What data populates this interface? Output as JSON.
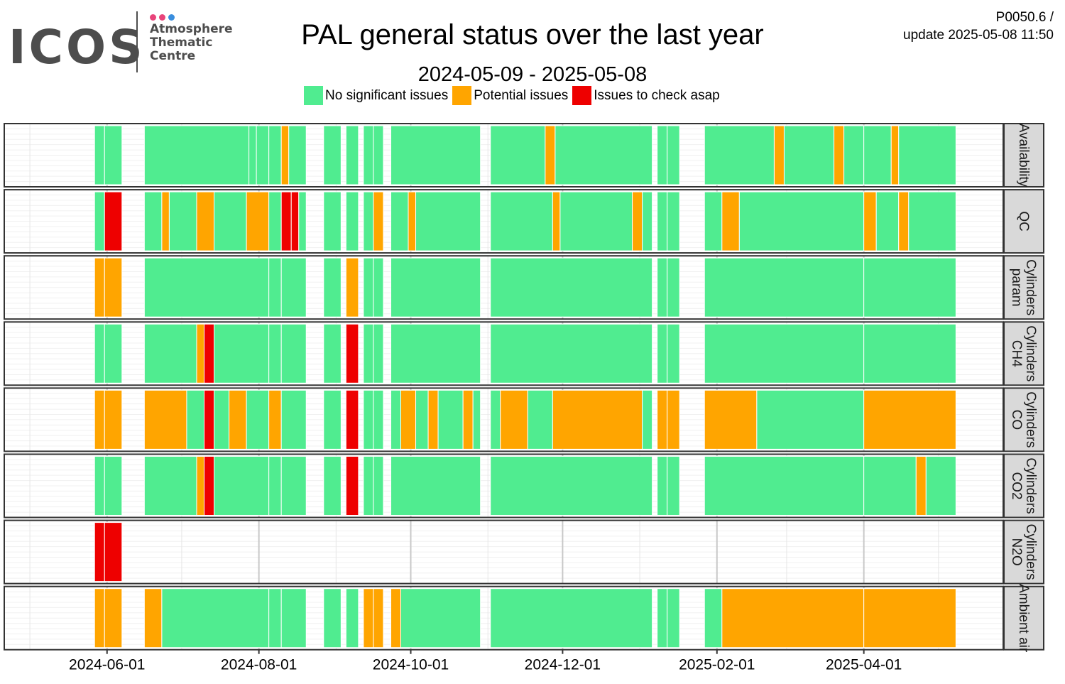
{
  "header": {
    "logo_text": "ICOS",
    "logo_sub": [
      "Atmosphere",
      "Thematic",
      "Centre"
    ],
    "logo_dot_colors": [
      "#e8447a",
      "#e8447a",
      "#3a8ede"
    ],
    "title": "PAL general status over the last year",
    "subtitle": "2024-05-09 - 2025-05-08",
    "code_line1": "P0050.6 /",
    "code_line2": "update  2025-05-08 11:50"
  },
  "legend": [
    {
      "label": "No significant issues",
      "color": "#50ec90"
    },
    {
      "label": "Potential issues",
      "color": "#ffa500"
    },
    {
      "label": "Issues to check asap",
      "color": "#ee0000"
    }
  ],
  "chart_data": {
    "type": "heatmap",
    "title": "PAL general status over the last year",
    "subtitle": "2024-05-09 - 2025-05-08",
    "x_range": [
      "2024-05-09",
      "2025-05-08"
    ],
    "x_ticks": [
      "2024-06-01",
      "2024-08-01",
      "2024-10-01",
      "2024-12-01",
      "2025-02-01",
      "2025-04-01"
    ],
    "status_colors": {
      "G": "#50ec90",
      "O": "#ffa500",
      "R": "#ee0000"
    },
    "rows": [
      {
        "label": [
          "Availability"
        ],
        "segments": [
          [
            "2024-05-27",
            "2024-05-30",
            "G"
          ],
          [
            "2024-05-31",
            "2024-06-06",
            "G"
          ],
          [
            "2024-06-16",
            "2024-07-27",
            "G"
          ],
          [
            "2024-07-28",
            "2024-07-30",
            "G"
          ],
          [
            "2024-07-31",
            "2024-08-04",
            "G"
          ],
          [
            "2024-08-05",
            "2024-08-09",
            "G"
          ],
          [
            "2024-08-10",
            "2024-08-12",
            "O"
          ],
          [
            "2024-08-13",
            "2024-08-19",
            "G"
          ],
          [
            "2024-08-27",
            "2024-09-02",
            "G"
          ],
          [
            "2024-09-05",
            "2024-09-09",
            "G"
          ],
          [
            "2024-09-12",
            "2024-09-15",
            "G"
          ],
          [
            "2024-09-16",
            "2024-09-19",
            "G"
          ],
          [
            "2024-09-23",
            "2024-10-28",
            "G"
          ],
          [
            "2024-11-02",
            "2024-11-23",
            "G"
          ],
          [
            "2024-11-24",
            "2024-11-27",
            "O"
          ],
          [
            "2024-11-28",
            "2025-01-05",
            "G"
          ],
          [
            "2025-01-08",
            "2025-01-11",
            "G"
          ],
          [
            "2025-01-12",
            "2025-01-16",
            "G"
          ],
          [
            "2025-01-27",
            "2025-02-23",
            "G"
          ],
          [
            "2025-02-24",
            "2025-02-27",
            "O"
          ],
          [
            "2025-02-28",
            "2025-03-19",
            "G"
          ],
          [
            "2025-03-20",
            "2025-03-23",
            "O"
          ],
          [
            "2025-03-24",
            "2025-03-31",
            "G"
          ],
          [
            "2025-04-01",
            "2025-04-11",
            "G"
          ],
          [
            "2025-04-12",
            "2025-04-14",
            "O"
          ],
          [
            "2025-04-15",
            "2025-05-07",
            "G"
          ]
        ]
      },
      {
        "label": [
          "QC"
        ],
        "segments": [
          [
            "2024-05-27",
            "2024-05-30",
            "G"
          ],
          [
            "2024-05-31",
            "2024-06-06",
            "R"
          ],
          [
            "2024-06-16",
            "2024-06-22",
            "G"
          ],
          [
            "2024-06-23",
            "2024-06-25",
            "O"
          ],
          [
            "2024-06-26",
            "2024-07-06",
            "G"
          ],
          [
            "2024-07-07",
            "2024-07-13",
            "O"
          ],
          [
            "2024-07-14",
            "2024-07-26",
            "G"
          ],
          [
            "2024-07-27",
            "2024-08-04",
            "O"
          ],
          [
            "2024-08-05",
            "2024-08-09",
            "G"
          ],
          [
            "2024-08-10",
            "2024-08-13",
            "R"
          ],
          [
            "2024-08-14",
            "2024-08-16",
            "R"
          ],
          [
            "2024-08-17",
            "2024-08-19",
            "G"
          ],
          [
            "2024-08-27",
            "2024-09-02",
            "G"
          ],
          [
            "2024-09-05",
            "2024-09-09",
            "G"
          ],
          [
            "2024-09-12",
            "2024-09-15",
            "G"
          ],
          [
            "2024-09-16",
            "2024-09-19",
            "O"
          ],
          [
            "2024-09-23",
            "2024-09-29",
            "G"
          ],
          [
            "2024-09-30",
            "2024-10-02",
            "O"
          ],
          [
            "2024-10-03",
            "2024-10-28",
            "G"
          ],
          [
            "2024-11-02",
            "2024-11-26",
            "G"
          ],
          [
            "2024-11-27",
            "2024-11-29",
            "O"
          ],
          [
            "2024-11-30",
            "2024-12-28",
            "G"
          ],
          [
            "2024-12-29",
            "2025-01-01",
            "O"
          ],
          [
            "2025-01-02",
            "2025-01-05",
            "G"
          ],
          [
            "2025-01-08",
            "2025-01-11",
            "G"
          ],
          [
            "2025-01-12",
            "2025-01-16",
            "G"
          ],
          [
            "2025-01-27",
            "2025-02-02",
            "G"
          ],
          [
            "2025-02-03",
            "2025-02-09",
            "O"
          ],
          [
            "2025-02-10",
            "2025-03-31",
            "G"
          ],
          [
            "2025-04-01",
            "2025-04-05",
            "O"
          ],
          [
            "2025-04-06",
            "2025-04-14",
            "G"
          ],
          [
            "2025-04-15",
            "2025-04-18",
            "O"
          ],
          [
            "2025-04-19",
            "2025-05-07",
            "G"
          ]
        ]
      },
      {
        "label": [
          "Cylinders",
          "param"
        ],
        "segments": [
          [
            "2024-05-27",
            "2024-05-30",
            "O"
          ],
          [
            "2024-05-31",
            "2024-06-06",
            "O"
          ],
          [
            "2024-06-16",
            "2024-08-04",
            "G"
          ],
          [
            "2024-08-05",
            "2024-08-09",
            "G"
          ],
          [
            "2024-08-10",
            "2024-08-19",
            "G"
          ],
          [
            "2024-08-27",
            "2024-09-02",
            "G"
          ],
          [
            "2024-09-05",
            "2024-09-09",
            "O"
          ],
          [
            "2024-09-12",
            "2024-09-15",
            "G"
          ],
          [
            "2024-09-16",
            "2024-09-19",
            "G"
          ],
          [
            "2024-09-23",
            "2024-10-28",
            "G"
          ],
          [
            "2024-11-02",
            "2025-01-05",
            "G"
          ],
          [
            "2025-01-08",
            "2025-01-11",
            "G"
          ],
          [
            "2025-01-12",
            "2025-01-16",
            "G"
          ],
          [
            "2025-01-27",
            "2025-03-31",
            "G"
          ],
          [
            "2025-04-01",
            "2025-05-07",
            "G"
          ]
        ]
      },
      {
        "label": [
          "Cylinders",
          "CH4"
        ],
        "segments": [
          [
            "2024-05-27",
            "2024-05-30",
            "G"
          ],
          [
            "2024-05-31",
            "2024-06-06",
            "G"
          ],
          [
            "2024-06-16",
            "2024-07-06",
            "G"
          ],
          [
            "2024-07-07",
            "2024-07-09",
            "O"
          ],
          [
            "2024-07-10",
            "2024-07-13",
            "R"
          ],
          [
            "2024-07-14",
            "2024-08-04",
            "G"
          ],
          [
            "2024-08-05",
            "2024-08-09",
            "G"
          ],
          [
            "2024-08-10",
            "2024-08-19",
            "G"
          ],
          [
            "2024-08-27",
            "2024-09-02",
            "G"
          ],
          [
            "2024-09-05",
            "2024-09-09",
            "R"
          ],
          [
            "2024-09-12",
            "2024-09-15",
            "G"
          ],
          [
            "2024-09-16",
            "2024-09-19",
            "G"
          ],
          [
            "2024-09-23",
            "2024-10-28",
            "G"
          ],
          [
            "2024-11-02",
            "2025-01-05",
            "G"
          ],
          [
            "2025-01-08",
            "2025-01-11",
            "G"
          ],
          [
            "2025-01-12",
            "2025-01-16",
            "G"
          ],
          [
            "2025-01-27",
            "2025-03-31",
            "G"
          ],
          [
            "2025-04-01",
            "2025-05-07",
            "G"
          ]
        ]
      },
      {
        "label": [
          "Cylinders",
          "CO"
        ],
        "segments": [
          [
            "2024-05-27",
            "2024-05-30",
            "O"
          ],
          [
            "2024-05-31",
            "2024-06-06",
            "O"
          ],
          [
            "2024-06-16",
            "2024-07-02",
            "O"
          ],
          [
            "2024-07-03",
            "2024-07-09",
            "G"
          ],
          [
            "2024-07-10",
            "2024-07-13",
            "R"
          ],
          [
            "2024-07-14",
            "2024-07-19",
            "G"
          ],
          [
            "2024-07-20",
            "2024-07-26",
            "O"
          ],
          [
            "2024-07-27",
            "2024-08-04",
            "G"
          ],
          [
            "2024-08-05",
            "2024-08-09",
            "O"
          ],
          [
            "2024-08-10",
            "2024-08-19",
            "G"
          ],
          [
            "2024-08-27",
            "2024-09-02",
            "G"
          ],
          [
            "2024-09-05",
            "2024-09-09",
            "R"
          ],
          [
            "2024-09-12",
            "2024-09-15",
            "G"
          ],
          [
            "2024-09-16",
            "2024-09-19",
            "G"
          ],
          [
            "2024-09-23",
            "2024-09-26",
            "G"
          ],
          [
            "2024-09-27",
            "2024-10-02",
            "O"
          ],
          [
            "2024-10-03",
            "2024-10-07",
            "G"
          ],
          [
            "2024-10-08",
            "2024-10-11",
            "O"
          ],
          [
            "2024-10-12",
            "2024-10-21",
            "G"
          ],
          [
            "2024-10-22",
            "2024-10-25",
            "O"
          ],
          [
            "2024-10-26",
            "2024-10-28",
            "G"
          ],
          [
            "2024-11-02",
            "2024-11-05",
            "G"
          ],
          [
            "2024-11-06",
            "2024-11-16",
            "O"
          ],
          [
            "2024-11-17",
            "2024-11-26",
            "G"
          ],
          [
            "2024-11-27",
            "2025-01-01",
            "O"
          ],
          [
            "2025-01-02",
            "2025-01-05",
            "G"
          ],
          [
            "2025-01-08",
            "2025-01-11",
            "O"
          ],
          [
            "2025-01-12",
            "2025-01-16",
            "O"
          ],
          [
            "2025-01-27",
            "2025-02-16",
            "O"
          ],
          [
            "2025-02-17",
            "2025-03-31",
            "G"
          ],
          [
            "2025-04-01",
            "2025-05-07",
            "O"
          ]
        ]
      },
      {
        "label": [
          "Cylinders",
          "CO2"
        ],
        "segments": [
          [
            "2024-05-27",
            "2024-05-30",
            "G"
          ],
          [
            "2024-05-31",
            "2024-06-06",
            "G"
          ],
          [
            "2024-06-16",
            "2024-07-06",
            "G"
          ],
          [
            "2024-07-07",
            "2024-07-09",
            "O"
          ],
          [
            "2024-07-10",
            "2024-07-13",
            "R"
          ],
          [
            "2024-07-14",
            "2024-08-04",
            "G"
          ],
          [
            "2024-08-05",
            "2024-08-09",
            "G"
          ],
          [
            "2024-08-10",
            "2024-08-19",
            "G"
          ],
          [
            "2024-08-27",
            "2024-09-02",
            "G"
          ],
          [
            "2024-09-05",
            "2024-09-09",
            "R"
          ],
          [
            "2024-09-12",
            "2024-09-15",
            "G"
          ],
          [
            "2024-09-16",
            "2024-09-19",
            "G"
          ],
          [
            "2024-09-23",
            "2024-10-28",
            "G"
          ],
          [
            "2024-11-02",
            "2025-01-05",
            "G"
          ],
          [
            "2025-01-08",
            "2025-01-11",
            "G"
          ],
          [
            "2025-01-12",
            "2025-01-16",
            "G"
          ],
          [
            "2025-01-27",
            "2025-03-31",
            "G"
          ],
          [
            "2025-04-01",
            "2025-04-21",
            "G"
          ],
          [
            "2025-04-22",
            "2025-04-25",
            "O"
          ],
          [
            "2025-04-26",
            "2025-05-07",
            "G"
          ]
        ]
      },
      {
        "label": [
          "Cylinders",
          "N2O"
        ],
        "segments": [
          [
            "2024-05-27",
            "2024-05-30",
            "R"
          ],
          [
            "2024-05-31",
            "2024-06-06",
            "R"
          ]
        ]
      },
      {
        "label": [
          "Ambient air"
        ],
        "segments": [
          [
            "2024-05-27",
            "2024-05-30",
            "O"
          ],
          [
            "2024-05-31",
            "2024-06-06",
            "O"
          ],
          [
            "2024-06-16",
            "2024-06-22",
            "O"
          ],
          [
            "2024-06-23",
            "2024-08-04",
            "G"
          ],
          [
            "2024-08-05",
            "2024-08-09",
            "G"
          ],
          [
            "2024-08-10",
            "2024-08-19",
            "G"
          ],
          [
            "2024-08-27",
            "2024-09-02",
            "G"
          ],
          [
            "2024-09-05",
            "2024-09-09",
            "G"
          ],
          [
            "2024-09-12",
            "2024-09-15",
            "O"
          ],
          [
            "2024-09-16",
            "2024-09-19",
            "O"
          ],
          [
            "2024-09-23",
            "2024-09-26",
            "O"
          ],
          [
            "2024-09-27",
            "2024-10-28",
            "G"
          ],
          [
            "2024-11-02",
            "2025-01-05",
            "G"
          ],
          [
            "2025-01-08",
            "2025-01-11",
            "G"
          ],
          [
            "2025-01-12",
            "2025-01-16",
            "G"
          ],
          [
            "2025-01-27",
            "2025-02-02",
            "G"
          ],
          [
            "2025-02-03",
            "2025-03-31",
            "O"
          ],
          [
            "2025-04-01",
            "2025-05-07",
            "O"
          ]
        ]
      }
    ]
  }
}
